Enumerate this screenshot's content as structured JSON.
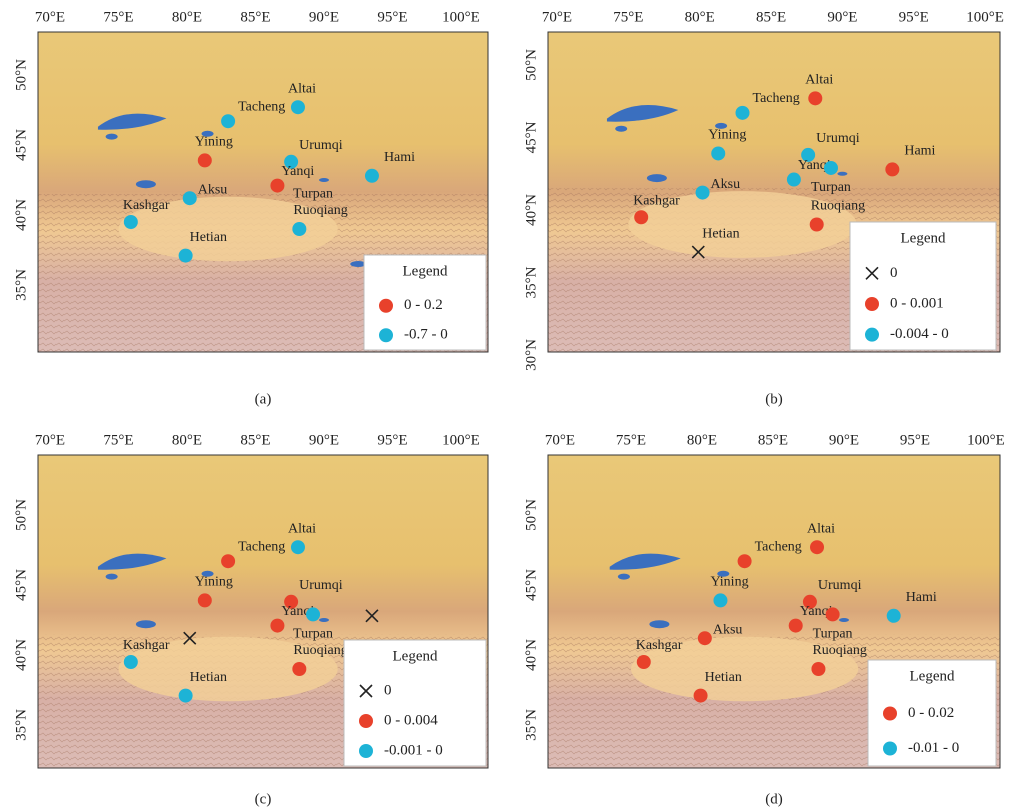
{
  "panels": [
    {
      "caption": "(a)",
      "xticks": [
        "70°E",
        "75°E",
        "80°E",
        "85°E",
        "90°E",
        "95°E",
        "100°E"
      ],
      "yticks": [
        "50°N",
        "45°N",
        "40°N",
        "35°N"
      ],
      "legend": {
        "title": "Legend",
        "entries": [
          {
            "label": "0 - 0.2",
            "marker": "dot",
            "color": "#e8412b"
          },
          {
            "label": "-0.7 - 0",
            "marker": "dot",
            "color": "#1db3d6"
          }
        ]
      },
      "stations": [
        {
          "name": "Altai",
          "class": 1
        },
        {
          "name": "Tacheng",
          "class": 1
        },
        {
          "name": "Yining",
          "class": 0
        },
        {
          "name": "Urumqi",
          "class": 1
        },
        {
          "name": "Hami",
          "class": 1
        },
        {
          "name": "Yanqi",
          "class": 0
        },
        {
          "name": "Turpan",
          "class": null
        },
        {
          "name": "Aksu",
          "class": 1
        },
        {
          "name": "Kashgar",
          "class": 1
        },
        {
          "name": "Ruoqiang",
          "class": 1
        },
        {
          "name": "Hetian",
          "class": 1
        }
      ]
    },
    {
      "caption": "(b)",
      "xticks": [
        "70°E",
        "75°E",
        "80°E",
        "85°E",
        "90°E",
        "95°E",
        "100°E"
      ],
      "yticks": [
        "50°N",
        "45°N",
        "40°N",
        "35°N",
        "30°N"
      ],
      "legend": {
        "title": "Legend",
        "entries": [
          {
            "label": "0",
            "marker": "cross",
            "color": "#222222"
          },
          {
            "label": "0 - 0.001",
            "marker": "dot",
            "color": "#e8412b"
          },
          {
            "label": "-0.004 - 0",
            "marker": "dot",
            "color": "#1db3d6"
          }
        ]
      },
      "stations": [
        {
          "name": "Altai",
          "class": 1
        },
        {
          "name": "Tacheng",
          "class": 2
        },
        {
          "name": "Yining",
          "class": 2
        },
        {
          "name": "Urumqi",
          "class": 2
        },
        {
          "name": "Hami",
          "class": 1
        },
        {
          "name": "Yanqi",
          "class": 2
        },
        {
          "name": "Turpan",
          "class": 2
        },
        {
          "name": "Aksu",
          "class": 2
        },
        {
          "name": "Kashgar",
          "class": 1
        },
        {
          "name": "Ruoqiang",
          "class": 1
        },
        {
          "name": "Hetian",
          "class": 0
        }
      ]
    },
    {
      "caption": "(c)",
      "xticks": [
        "70°E",
        "75°E",
        "80°E",
        "85°E",
        "90°E",
        "95°E",
        "100°E"
      ],
      "yticks": [
        "50°N",
        "45°N",
        "40°N",
        "35°N"
      ],
      "legend": {
        "title": "Legend",
        "entries": [
          {
            "label": "0",
            "marker": "cross",
            "color": "#222222"
          },
          {
            "label": "0 - 0.004",
            "marker": "dot",
            "color": "#e8412b"
          },
          {
            "label": "-0.001 - 0",
            "marker": "dot",
            "color": "#1db3d6"
          }
        ]
      },
      "stations": [
        {
          "name": "Altai",
          "class": 2
        },
        {
          "name": "Tacheng",
          "class": 1
        },
        {
          "name": "Yining",
          "class": 1
        },
        {
          "name": "Urumqi",
          "class": 1
        },
        {
          "name": null,
          "class": 0
        },
        {
          "name": "Yanqi",
          "class": 1
        },
        {
          "name": "Turpan",
          "class": 2
        },
        {
          "name": null,
          "class": 0
        },
        {
          "name": "Kashgar",
          "class": 2
        },
        {
          "name": "Ruoqiang",
          "class": 1
        },
        {
          "name": "Hetian",
          "class": 2
        }
      ]
    },
    {
      "caption": "(d)",
      "xticks": [
        "70°E",
        "75°E",
        "80°E",
        "85°E",
        "90°E",
        "95°E",
        "100°E"
      ],
      "yticks": [
        "50°N",
        "45°N",
        "40°N",
        "35°N"
      ],
      "legend": {
        "title": "Legend",
        "entries": [
          {
            "label": "0 - 0.02",
            "marker": "dot",
            "color": "#e8412b"
          },
          {
            "label": "-0.01 - 0",
            "marker": "dot",
            "color": "#1db3d6"
          }
        ]
      },
      "stations": [
        {
          "name": "Altai",
          "class": 0
        },
        {
          "name": "Tacheng",
          "class": 0
        },
        {
          "name": "Yining",
          "class": 1
        },
        {
          "name": "Urumqi",
          "class": 0
        },
        {
          "name": "Hami",
          "class": 1
        },
        {
          "name": "Yanqi",
          "class": 0
        },
        {
          "name": "Turpan",
          "class": 0
        },
        {
          "name": "Aksu",
          "class": 0
        },
        {
          "name": "Kashgar",
          "class": 0
        },
        {
          "name": "Ruoqiang",
          "class": 0
        },
        {
          "name": "Hetian",
          "class": 0
        }
      ]
    }
  ]
}
